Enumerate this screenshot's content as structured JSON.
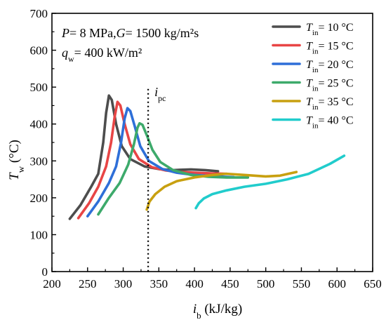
{
  "chart_data": {
    "type": "line",
    "xlabel": {
      "main": "i",
      "sub": "b",
      "unit": " (kJ/kg)"
    },
    "ylabel": {
      "main": "T",
      "sub": "w",
      "unit": " (°C)"
    },
    "xlim": [
      200,
      650
    ],
    "ylim": [
      0,
      700
    ],
    "xticks": [
      200,
      250,
      300,
      350,
      400,
      450,
      500,
      550,
      600,
      650
    ],
    "yticks": [
      0,
      100,
      200,
      300,
      400,
      500,
      600,
      700
    ],
    "grid": false,
    "legend_position": "top-right",
    "annotations": {
      "line1": "P= 8 MPa,G= 1500 kg/m²s",
      "line2_main": "q",
      "line2_sub": "w",
      "line2_rest": "= 400 kW/m²"
    },
    "vline": {
      "x": 335,
      "label_main": "i",
      "label_sub": "pc",
      "style": "dotted"
    },
    "legend_symbol": {
      "main": "T",
      "sub": "in"
    },
    "series": [
      {
        "name": "= 10 °C",
        "color": "#4d4d4d",
        "points": [
          [
            225,
            143
          ],
          [
            240,
            180
          ],
          [
            255,
            230
          ],
          [
            265,
            265
          ],
          [
            272,
            350
          ],
          [
            276,
            430
          ],
          [
            280,
            477
          ],
          [
            284,
            465
          ],
          [
            290,
            400
          ],
          [
            298,
            340
          ],
          [
            310,
            305
          ],
          [
            330,
            285
          ],
          [
            350,
            278
          ],
          [
            370,
            275
          ],
          [
            395,
            277
          ],
          [
            415,
            275
          ],
          [
            433,
            272
          ]
        ]
      },
      {
        "name": "= 15 °C",
        "color": "#e84545",
        "points": [
          [
            237,
            145
          ],
          [
            252,
            185
          ],
          [
            265,
            230
          ],
          [
            276,
            285
          ],
          [
            283,
            350
          ],
          [
            288,
            420
          ],
          [
            292,
            460
          ],
          [
            296,
            450
          ],
          [
            302,
            400
          ],
          [
            310,
            345
          ],
          [
            322,
            305
          ],
          [
            340,
            283
          ],
          [
            360,
            274
          ],
          [
            380,
            270
          ],
          [
            400,
            268
          ],
          [
            425,
            266
          ],
          [
            445,
            265
          ]
        ]
      },
      {
        "name": "= 20 °C",
        "color": "#2e6fd8",
        "points": [
          [
            250,
            150
          ],
          [
            265,
            190
          ],
          [
            280,
            240
          ],
          [
            290,
            285
          ],
          [
            297,
            350
          ],
          [
            302,
            415
          ],
          [
            306,
            443
          ],
          [
            310,
            435
          ],
          [
            316,
            395
          ],
          [
            324,
            340
          ],
          [
            336,
            300
          ],
          [
            355,
            278
          ],
          [
            375,
            268
          ],
          [
            400,
            262
          ],
          [
            430,
            258
          ],
          [
            455,
            256
          ]
        ]
      },
      {
        "name": "= 25 °C",
        "color": "#3daa6b",
        "points": [
          [
            265,
            155
          ],
          [
            280,
            200
          ],
          [
            295,
            240
          ],
          [
            307,
            290
          ],
          [
            315,
            345
          ],
          [
            320,
            390
          ],
          [
            323,
            402
          ],
          [
            327,
            398
          ],
          [
            333,
            370
          ],
          [
            341,
            330
          ],
          [
            352,
            297
          ],
          [
            370,
            275
          ],
          [
            395,
            262
          ],
          [
            420,
            257
          ],
          [
            445,
            255
          ],
          [
            475,
            255
          ]
        ]
      },
      {
        "name": "= 35 °C",
        "color": "#c8a010",
        "points": [
          [
            333,
            168
          ],
          [
            337,
            190
          ],
          [
            345,
            210
          ],
          [
            358,
            230
          ],
          [
            375,
            245
          ],
          [
            400,
            255
          ],
          [
            425,
            262
          ],
          [
            445,
            265
          ],
          [
            470,
            262
          ],
          [
            500,
            258
          ],
          [
            520,
            260
          ],
          [
            543,
            270
          ]
        ]
      },
      {
        "name": "= 40 °C",
        "color": "#21cccc",
        "points": [
          [
            402,
            172
          ],
          [
            406,
            185
          ],
          [
            413,
            198
          ],
          [
            425,
            210
          ],
          [
            445,
            220
          ],
          [
            470,
            230
          ],
          [
            500,
            238
          ],
          [
            530,
            250
          ],
          [
            560,
            265
          ],
          [
            590,
            292
          ],
          [
            610,
            314
          ]
        ]
      }
    ]
  }
}
